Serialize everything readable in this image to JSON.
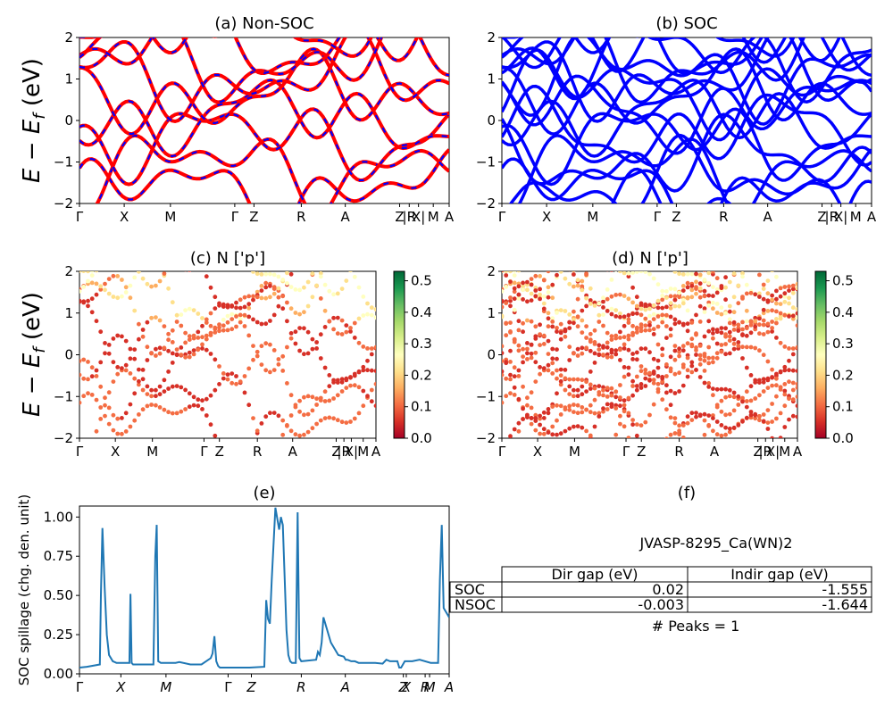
{
  "colors": {
    "nonsoc_line": "#ff0000",
    "nonsoc_dash": "#0000ff",
    "soc_line": "#0000ff",
    "spillage": "#1f77b4",
    "cmap": "YlOrRd_r to RdYlGn"
  },
  "shared": {
    "ylabel": "E − E_f (eV)",
    "kpath_labels": [
      "Γ",
      "X",
      "M",
      "Γ",
      "Z",
      "R",
      "A",
      "Z",
      "|R",
      "X|",
      "M",
      "A"
    ]
  },
  "table": {
    "material": "JVASP-8295_Ca(WN)2",
    "headers": [
      "",
      "Dir gap (eV)",
      "Indir gap (eV)"
    ],
    "rows": [
      [
        "SOC",
        "0.02",
        "-1.555"
      ],
      [
        "NSOC",
        "-0.003",
        "-1.644"
      ]
    ],
    "peaks": "# Peaks = 1"
  },
  "chart_data": [
    {
      "panel": "a",
      "type": "line",
      "title": "(a) Non-SOC",
      "ylabel": "E − E_f (eV)",
      "ylim": [
        -2,
        2
      ],
      "yticks": [
        -2,
        -1,
        0,
        1,
        2
      ],
      "xticks": [
        "Γ",
        "X",
        "M",
        "Γ",
        "Z",
        "R",
        "A",
        "Z",
        "|R",
        "X|",
        "M",
        "A"
      ],
      "grid": false
    },
    {
      "panel": "b",
      "type": "line",
      "title": "(b) SOC",
      "ylim": [
        -2,
        2
      ],
      "yticks": [
        -2,
        -1,
        0,
        1,
        2
      ],
      "xticks": [
        "Γ",
        "X",
        "M",
        "Γ",
        "Z",
        "R",
        "A",
        "Z",
        "|R",
        "X|",
        "M",
        "A"
      ],
      "grid": false
    },
    {
      "panel": "c",
      "type": "scatter",
      "title": "(c)  N ['p']",
      "ylabel": "E − E_f (eV)",
      "ylim": [
        -2,
        2
      ],
      "yticks": [
        -2,
        -1,
        0,
        1,
        2
      ],
      "xticks": [
        "Γ",
        "X",
        "M",
        "Γ",
        "Z",
        "R",
        "A",
        "Z",
        "|R",
        "X|",
        "M",
        "A"
      ],
      "colorbar": {
        "min": 0.0,
        "max": 0.53,
        "ticks": [
          0.0,
          0.1,
          0.2,
          0.3,
          0.4,
          0.5
        ]
      }
    },
    {
      "panel": "d",
      "type": "scatter",
      "title": "(d) N ['p']",
      "ylim": [
        -2,
        2
      ],
      "yticks": [
        -2,
        -1,
        0,
        1,
        2
      ],
      "xticks": [
        "Γ",
        "X",
        "M",
        "Γ",
        "Z",
        "R",
        "A",
        "Z",
        "|R",
        "X|",
        "M",
        "A"
      ],
      "colorbar": {
        "min": 0.0,
        "max": 0.53,
        "ticks": [
          0.0,
          0.1,
          0.2,
          0.3,
          0.4,
          0.5
        ]
      }
    },
    {
      "panel": "e",
      "type": "line",
      "title": "(e)",
      "ylabel": "SOC spillage (chg. den. unit)",
      "ylim": [
        0,
        1.07
      ],
      "yticks": [
        "0.00",
        "0.25",
        "0.50",
        "0.75",
        "1.00"
      ],
      "xticks": [
        "Γ",
        "X",
        "M",
        "Γ",
        "Z",
        "R",
        "A",
        "Z",
        "X",
        "R",
        "M",
        "A"
      ],
      "x": [
        0,
        0.02,
        0.055,
        0.058,
        0.062,
        0.068,
        0.074,
        0.08,
        0.09,
        0.1,
        0.12,
        0.135,
        0.138,
        0.141,
        0.145,
        0.16,
        0.2,
        0.205,
        0.209,
        0.213,
        0.22,
        0.26,
        0.27,
        0.3,
        0.33,
        0.355,
        0.36,
        0.365,
        0.37,
        0.375,
        0.38,
        0.46,
        0.5,
        0.505,
        0.51,
        0.515,
        0.52,
        0.53,
        0.535,
        0.54,
        0.545,
        0.55,
        0.56,
        0.565,
        0.57,
        0.575,
        0.585,
        0.59,
        0.595,
        0.6,
        0.64,
        0.645,
        0.65,
        0.655,
        0.66,
        0.68,
        0.7,
        0.715,
        0.72,
        0.725,
        0.73,
        0.735,
        0.745,
        0.755,
        0.775,
        0.8,
        0.82,
        0.83,
        0.84,
        0.86,
        0.865,
        0.87,
        0.88,
        0.9,
        0.92,
        0.95,
        0.97,
        0.975,
        0.98,
        0.985,
        1.0
      ],
      "values": [
        0.04,
        0.045,
        0.06,
        0.5,
        0.93,
        0.55,
        0.25,
        0.12,
        0.08,
        0.07,
        0.07,
        0.07,
        0.51,
        0.07,
        0.06,
        0.06,
        0.06,
        0.75,
        0.95,
        0.08,
        0.07,
        0.07,
        0.075,
        0.06,
        0.06,
        0.1,
        0.13,
        0.24,
        0.08,
        0.05,
        0.04,
        0.04,
        0.045,
        0.47,
        0.35,
        0.32,
        0.6,
        1.06,
        0.99,
        0.92,
        1.0,
        0.95,
        0.28,
        0.12,
        0.08,
        0.07,
        0.07,
        1.03,
        0.1,
        0.08,
        0.09,
        0.14,
        0.12,
        0.2,
        0.36,
        0.2,
        0.12,
        0.11,
        0.09,
        0.09,
        0.085,
        0.08,
        0.08,
        0.07,
        0.07,
        0.07,
        0.065,
        0.09,
        0.08,
        0.08,
        0.04,
        0.04,
        0.08,
        0.08,
        0.09,
        0.07,
        0.07,
        0.6,
        0.95,
        0.42,
        0.36
      ],
      "grid": false
    }
  ]
}
